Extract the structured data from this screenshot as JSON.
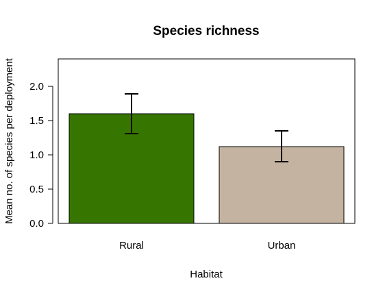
{
  "chart_data": {
    "type": "bar",
    "title": "Species richness",
    "xlabel": "Habitat",
    "ylabel": "Mean no. of species per deployment",
    "categories": [
      "Rural",
      "Urban"
    ],
    "values": [
      1.6,
      1.12
    ],
    "error_low": [
      1.31,
      0.9
    ],
    "error_high": [
      1.89,
      1.35
    ],
    "colors": [
      "#367600",
      "#c4b3a1"
    ],
    "ylim": [
      0,
      2.4
    ],
    "yticks": [
      0.0,
      0.5,
      1.0,
      1.5,
      2.0
    ],
    "ytick_labels": [
      "0.0",
      "0.5",
      "1.0",
      "1.5",
      "2.0"
    ],
    "grid": false,
    "legend": "none"
  }
}
